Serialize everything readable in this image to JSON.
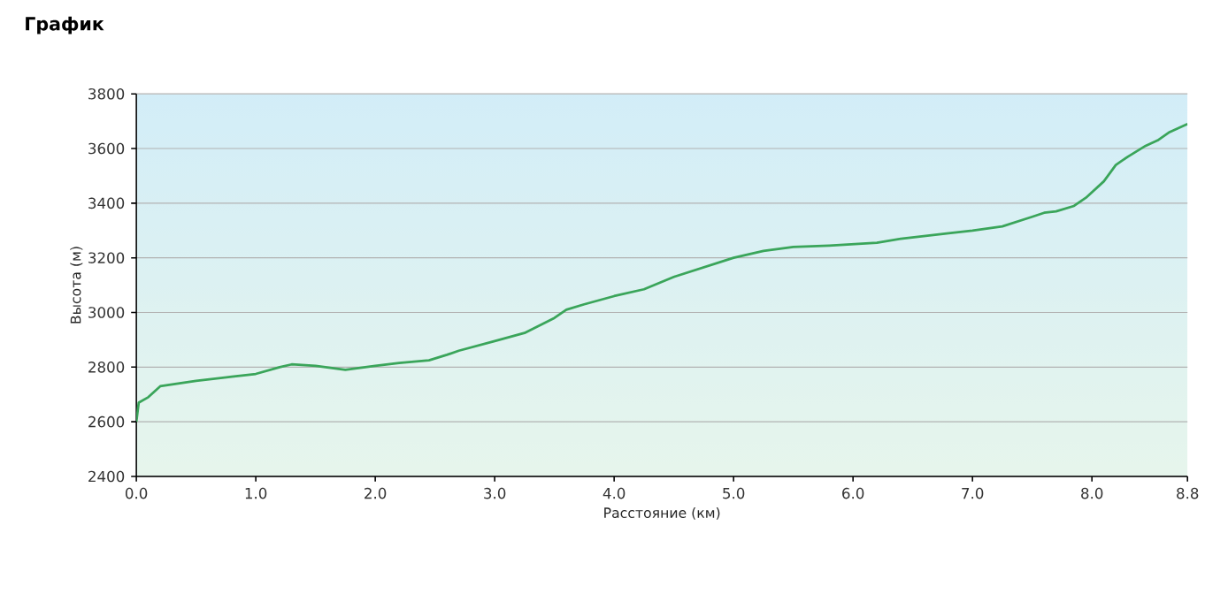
{
  "chart_data": {
    "type": "line",
    "title": "График",
    "xlabel": "Расстояние   (км)",
    "ylabel": "Высота (м)",
    "x": [
      0,
      0.02,
      0.1,
      0.2,
      0.5,
      0.8,
      1.0,
      1.2,
      1.3,
      1.5,
      1.75,
      2.0,
      2.2,
      2.45,
      2.6,
      2.7,
      3.0,
      3.25,
      3.5,
      3.6,
      3.75,
      4.0,
      4.25,
      4.5,
      4.75,
      5.0,
      5.25,
      5.5,
      5.8,
      6.0,
      6.2,
      6.4,
      6.8,
      7.0,
      7.25,
      7.5,
      7.6,
      7.7,
      7.85,
      7.95,
      8.1,
      8.2,
      8.3,
      8.45,
      8.55,
      8.65,
      8.8
    ],
    "series": [
      {
        "color": "#3aa55a",
        "values": [
          2600,
          2670,
          2690,
          2730,
          2750,
          2765,
          2775,
          2800,
          2810,
          2805,
          2790,
          2805,
          2815,
          2825,
          2845,
          2860,
          2895,
          2925,
          2980,
          3010,
          3030,
          3060,
          3085,
          3130,
          3165,
          3200,
          3225,
          3240,
          3245,
          3250,
          3255,
          3270,
          3290,
          3300,
          3315,
          3350,
          3365,
          3370,
          3390,
          3420,
          3480,
          3540,
          3570,
          3610,
          3630,
          3660,
          3690
        ]
      }
    ],
    "xlim": [
      0,
      8.8
    ],
    "ylim": [
      2400,
      3800
    ],
    "xticks": [
      {
        "value": 0,
        "label": "0.0"
      },
      {
        "value": 1,
        "label": "1.0"
      },
      {
        "value": 2,
        "label": "2.0"
      },
      {
        "value": 3,
        "label": "3.0"
      },
      {
        "value": 4,
        "label": "4.0"
      },
      {
        "value": 5,
        "label": "5.0"
      },
      {
        "value": 6,
        "label": "6.0"
      },
      {
        "value": 7,
        "label": "7.0"
      },
      {
        "value": 8,
        "label": "8.0"
      },
      {
        "value": 8.8,
        "label": "8.8"
      }
    ],
    "yticks": [
      2400,
      2600,
      2800,
      3000,
      3200,
      3400,
      3600,
      3800
    ],
    "grid": "y",
    "marker": "none",
    "line_style": "solid"
  }
}
